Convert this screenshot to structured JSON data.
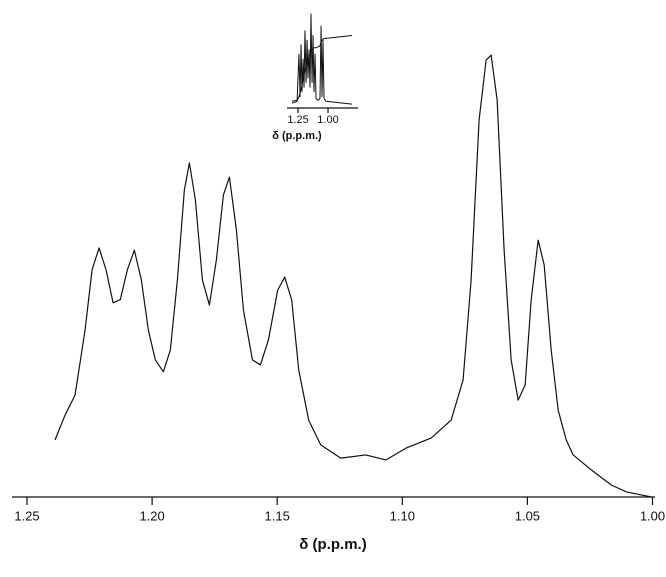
{
  "chart_data": [
    {
      "type": "line",
      "x_label": "δ (p.p.m.)",
      "xlim": [
        1.256,
        0.999
      ],
      "xticks": [
        1.25,
        {
          "value": 1.2,
          "label": "1.20"
        },
        1.15,
        {
          "value": 1.1,
          "label": "1.10"
        },
        1.05,
        {
          "value": 1.0,
          "label": "1.00"
        }
      ],
      "ylim": [
        0,
        100
      ],
      "color": "#111111",
      "x": [
        1.2388,
        1.2348,
        1.2308,
        1.2268,
        1.224,
        1.2212,
        1.2184,
        1.2156,
        1.2127,
        1.2099,
        1.2071,
        1.2043,
        1.2015,
        1.1987,
        1.1955,
        1.1927,
        1.1899,
        1.1871,
        1.1851,
        1.1827,
        1.1799,
        1.1771,
        1.1743,
        1.1715,
        1.1691,
        1.1663,
        1.1635,
        1.1599,
        1.1567,
        1.1535,
        1.1498,
        1.147,
        1.1442,
        1.1414,
        1.1374,
        1.1326,
        1.1246,
        1.1146,
        1.1066,
        1.0985,
        1.0885,
        1.0805,
        1.0757,
        1.0725,
        1.0693,
        1.0665,
        1.0645,
        1.0621,
        1.0593,
        1.0565,
        1.0537,
        1.0509,
        1.0485,
        1.0457,
        1.0433,
        1.0405,
        1.0377,
        1.0345,
        1.0317,
        1.0244,
        1.0164,
        1.0104,
        1.0004
      ],
      "values": [
        12.5,
        17.9,
        22.3,
        36.5,
        49.7,
        54.5,
        49.7,
        42.5,
        43.2,
        49.7,
        54.0,
        47.5,
        36.5,
        30.0,
        27.4,
        32.2,
        47.5,
        67.2,
        73.1,
        65.0,
        47.5,
        42.0,
        51.9,
        66.1,
        70.0,
        58.4,
        40.9,
        30.0,
        28.9,
        34.4,
        45.3,
        48.1,
        43.1,
        27.8,
        16.8,
        11.4,
        8.5,
        9.2,
        8.1,
        10.7,
        12.9,
        16.8,
        25.6,
        47.5,
        82.5,
        95.6,
        96.7,
        86.9,
        54.0,
        30.0,
        21.2,
        24.5,
        43.1,
        56.2,
        50.8,
        32.2,
        19.0,
        12.5,
        9.2,
        5.9,
        2.6,
        1.1,
        0
      ]
    },
    {
      "type": "line",
      "x_label": "δ (p.p.m.)",
      "xlim": [
        1.342,
        0.75
      ],
      "xticks": [
        1.25,
        {
          "value": 1.0,
          "label": "1.00"
        }
      ],
      "ylim": [
        0,
        100
      ],
      "x": [
        1.3,
        1.258,
        1.242,
        1.233,
        1.225,
        1.217,
        1.208,
        1.2,
        1.192,
        1.183,
        1.175,
        1.167,
        1.158,
        1.15,
        1.142,
        1.133,
        1.125,
        1.117,
        1.108,
        1.1,
        1.083,
        1.067,
        1.058,
        1.05,
        1.042,
        1.033,
        1.017,
        0.942,
        0.8
      ],
      "series": [
        {
          "color": "#111111",
          "values": [
            3,
            5,
            55,
            10,
            65,
            15,
            50,
            20,
            80,
            25,
            70,
            30,
            60,
            20,
            98,
            25,
            75,
            15,
            55,
            8,
            6,
            8,
            85,
            10,
            70,
            8,
            5,
            4,
            2
          ]
        },
        {
          "color": "#111111",
          "values": [
            5,
            6,
            10,
            14,
            18,
            22,
            28,
            34,
            38,
            42,
            46,
            49,
            52,
            54,
            58,
            60,
            61,
            62,
            62,
            62,
            63,
            64,
            68,
            70,
            71,
            72,
            72,
            73,
            75
          ]
        }
      ]
    }
  ]
}
